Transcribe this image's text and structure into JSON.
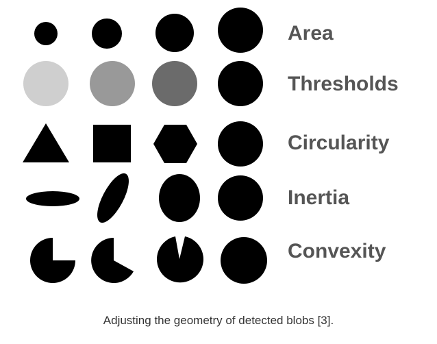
{
  "rows": [
    {
      "label": "Area"
    },
    {
      "label": "Thresholds"
    },
    {
      "label": "Circularity"
    },
    {
      "label": "Inertia"
    },
    {
      "label": "Convexity"
    }
  ],
  "caption": "Adjusting the geometry of detected blobs [3].",
  "colors": {
    "blob": "#000000",
    "threshold_light": "#cfcfcf",
    "threshold_mid": "#999999",
    "threshold_dark": "#6b6b6b",
    "label": "#555555"
  },
  "shapes": {
    "area": [
      "small-circle",
      "medium-circle",
      "large-circle",
      "largest-circle"
    ],
    "thresholds": [
      "light-gray-circle",
      "mid-gray-circle",
      "dark-gray-circle",
      "black-circle"
    ],
    "circularity": [
      "triangle",
      "square",
      "hexagon",
      "circle"
    ],
    "inertia": [
      "thin-ellipse",
      "tilted-ellipse",
      "oval",
      "circle"
    ],
    "convexity": [
      "quarter-cut-circle",
      "wedge-cut-circle",
      "narrow-cut-circle",
      "full-circle"
    ]
  }
}
